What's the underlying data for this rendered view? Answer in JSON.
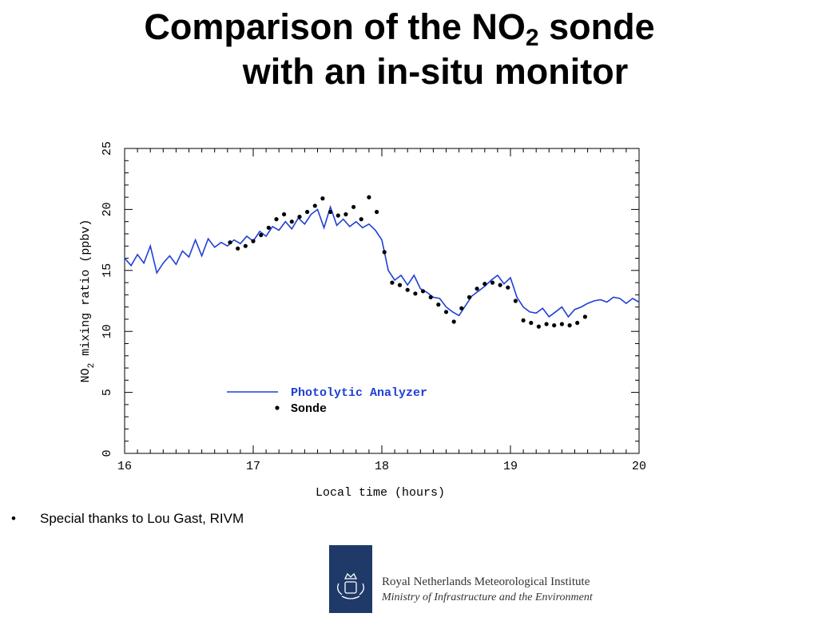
{
  "slide": {
    "title_line1_part1": "Comparison of the NO",
    "title_line1_sub": "2",
    "title_line1_part2": " sonde",
    "title_line2": "with an in-situ monitor"
  },
  "bullet": {
    "marker": "•",
    "text": "Special thanks to Lou Gast, RIVM"
  },
  "footer": {
    "organization": "Royal Netherlands Meteorological Institute",
    "ministry": "Ministry of Infrastructure and the Environment",
    "logo_color": "#1f3a68"
  },
  "chart_data": {
    "type": "line",
    "xlabel": "Local time (hours)",
    "ylabel_main": "NO",
    "ylabel_sub": "2",
    "ylabel_rest": " mixing ratio (ppbv)",
    "xlim": [
      16,
      20
    ],
    "ylim": [
      0,
      25
    ],
    "xticks": [
      16,
      17,
      18,
      19,
      20
    ],
    "yticks": [
      0,
      5,
      10,
      15,
      20,
      25
    ],
    "grid": false,
    "legend_position": "lower-left",
    "colors": {
      "Photolytic Analyzer": "#1f3fd6",
      "Sonde": "#000000"
    },
    "series": [
      {
        "name": "Photolytic Analyzer",
        "style": "line",
        "x": [
          16.0,
          16.05,
          16.1,
          16.15,
          16.2,
          16.25,
          16.3,
          16.35,
          16.4,
          16.45,
          16.5,
          16.55,
          16.6,
          16.65,
          16.7,
          16.75,
          16.8,
          16.85,
          16.9,
          16.95,
          17.0,
          17.05,
          17.1,
          17.15,
          17.2,
          17.25,
          17.3,
          17.35,
          17.4,
          17.45,
          17.5,
          17.55,
          17.6,
          17.65,
          17.7,
          17.75,
          17.8,
          17.85,
          17.9,
          17.95,
          18.0,
          18.05,
          18.1,
          18.15,
          18.2,
          18.25,
          18.3,
          18.35,
          18.4,
          18.45,
          18.5,
          18.55,
          18.6,
          18.65,
          18.7,
          18.75,
          18.8,
          18.85,
          18.9,
          18.95,
          19.0,
          19.05,
          19.1,
          19.15,
          19.2,
          19.25,
          19.3,
          19.35,
          19.4,
          19.45,
          19.5,
          19.55,
          19.6,
          19.65,
          19.7,
          19.75,
          19.8,
          19.85,
          19.9,
          19.95,
          20.0
        ],
        "y": [
          16.0,
          15.4,
          16.3,
          15.6,
          17.0,
          14.8,
          15.6,
          16.2,
          15.5,
          16.6,
          16.1,
          17.5,
          16.2,
          17.6,
          16.9,
          17.3,
          17.0,
          17.5,
          17.2,
          17.8,
          17.4,
          18.2,
          17.8,
          18.6,
          18.3,
          19.0,
          18.4,
          19.3,
          18.8,
          19.6,
          20.0,
          18.5,
          20.2,
          18.7,
          19.2,
          18.6,
          19.0,
          18.5,
          18.8,
          18.3,
          17.5,
          15.0,
          14.2,
          14.6,
          13.8,
          14.6,
          13.5,
          13.2,
          12.8,
          12.7,
          12.0,
          11.6,
          11.3,
          12.1,
          12.9,
          13.3,
          13.7,
          14.2,
          14.6,
          13.9,
          14.4,
          12.8,
          12.0,
          11.6,
          11.5,
          11.9,
          11.2,
          11.6,
          12.0,
          11.2,
          11.8,
          12.0,
          12.3,
          12.5,
          12.6,
          12.4,
          12.8,
          12.7,
          12.3,
          12.7,
          12.4
        ]
      },
      {
        "name": "Sonde",
        "style": "points",
        "x": [
          16.82,
          16.88,
          16.94,
          17.0,
          17.06,
          17.12,
          17.18,
          17.24,
          17.3,
          17.36,
          17.42,
          17.48,
          17.54,
          17.6,
          17.66,
          17.72,
          17.78,
          17.84,
          17.9,
          17.96,
          18.02,
          18.08,
          18.14,
          18.2,
          18.26,
          18.32,
          18.38,
          18.44,
          18.5,
          18.56,
          18.62,
          18.68,
          18.74,
          18.8,
          18.86,
          18.92,
          18.98,
          19.04,
          19.1,
          19.16,
          19.22,
          19.28,
          19.34,
          19.4,
          19.46,
          19.52,
          19.58
        ],
        "y": [
          17.3,
          16.8,
          17.0,
          17.4,
          17.9,
          18.5,
          19.2,
          19.6,
          19.0,
          19.4,
          19.8,
          20.3,
          20.9,
          19.8,
          19.5,
          19.6,
          20.2,
          19.2,
          21.0,
          19.8,
          16.5,
          14.0,
          13.8,
          13.4,
          13.1,
          13.3,
          12.8,
          12.2,
          11.6,
          10.8,
          11.9,
          12.8,
          13.5,
          13.9,
          14.0,
          13.8,
          13.6,
          12.5,
          10.9,
          10.7,
          10.4,
          10.6,
          10.5,
          10.6,
          10.5,
          10.7,
          11.2
        ]
      }
    ]
  }
}
